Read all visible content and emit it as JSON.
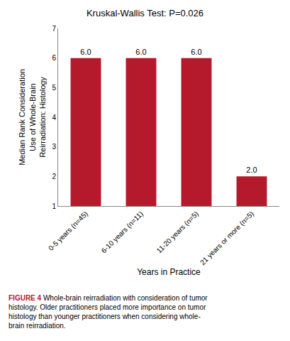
{
  "chart_data": {
    "type": "bar",
    "title": "Kruskal-Wallis Test: P=0.026",
    "xlabel": "Years in Practice",
    "ylabel": "Median Rank Consideration\nUse of Whole-Brain\nReirradiation: Histology",
    "categories": [
      "0-5 years (n=45)",
      "6-10 years (n=11)",
      "11-20 years (n=5)",
      "21 years or more (n=5)"
    ],
    "values": [
      6.0,
      6.0,
      6.0,
      2.0
    ],
    "value_labels": [
      "6.0",
      "6.0",
      "6.0",
      "2.0"
    ],
    "data_labels": true,
    "color": "#b5192c",
    "ylim": [
      1,
      7
    ],
    "yticks": [
      1,
      2,
      3,
      4,
      5,
      6,
      7
    ],
    "grid": false,
    "annotations": [
      {
        "text": "FIGURE 4",
        "color": "#b5192c"
      },
      {
        "text": " Whole-brain reirradiation with consideration of tumor\nhistology. Older practitioners placed more importance on tumor\nhistology than younger practitioners when considering whole-\nbrain reirradiation."
      }
    ]
  }
}
